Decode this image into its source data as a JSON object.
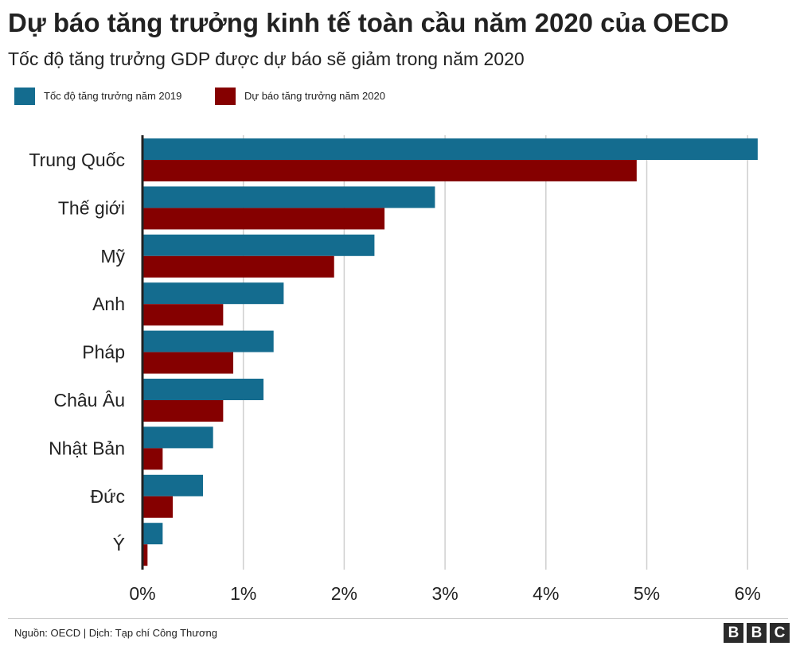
{
  "title": "Dự báo tăng trưởng kinh tế toàn cầu năm 2020 của OECD",
  "subtitle": "Tốc độ tăng trưởng GDP được dự báo sẽ giảm trong năm 2020",
  "colors": {
    "series_2019": "#146c8f",
    "series_2020": "#850000",
    "grid": "#cfcfcf",
    "axis": "#222222"
  },
  "chart_data": {
    "type": "bar",
    "orientation": "horizontal",
    "categories": [
      "Trung Quốc",
      "Thế giới",
      "Mỹ",
      "Anh",
      "Pháp",
      "Châu Âu",
      "Nhật Bản",
      "Đức",
      "Ý"
    ],
    "series": [
      {
        "name": "Tốc độ tăng trưởng năm 2019",
        "values": [
          6.1,
          2.9,
          2.3,
          1.4,
          1.3,
          1.2,
          0.7,
          0.6,
          0.2
        ]
      },
      {
        "name": "Dự báo tăng trưởng năm 2020",
        "values": [
          4.9,
          2.4,
          1.9,
          0.8,
          0.9,
          0.8,
          0.2,
          0.3,
          0.05
        ]
      }
    ],
    "xlim": [
      0,
      6
    ],
    "x_ticks": [
      0,
      1,
      2,
      3,
      4,
      5,
      6
    ],
    "x_tick_labels": [
      "0%",
      "1%",
      "2%",
      "3%",
      "4%",
      "5%",
      "6%"
    ],
    "grid": true,
    "legend_position": "top-left"
  },
  "footer": {
    "source": "Nguồn: OECD | Dịch: Tạp chí Công Thương",
    "logo_letters": [
      "B",
      "B",
      "C"
    ]
  }
}
